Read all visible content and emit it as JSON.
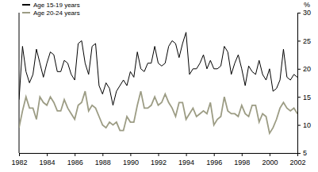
{
  "chart_data": {
    "type": "line",
    "y_label": "%",
    "legend": "top-left",
    "grid": false,
    "xlim": [
      1982,
      2002
    ],
    "xticks": [
      1982,
      1984,
      1986,
      1988,
      1990,
      1992,
      1994,
      1996,
      1998,
      2000,
      2002
    ],
    "ylim": [
      5,
      30
    ],
    "yticks": [
      5,
      10,
      15,
      20,
      25,
      30
    ],
    "x": [
      1982,
      1982.25,
      1982.5,
      1982.75,
      1983,
      1983.25,
      1983.5,
      1983.75,
      1984,
      1984.25,
      1984.5,
      1984.75,
      1985,
      1985.25,
      1985.5,
      1985.75,
      1986,
      1986.25,
      1986.5,
      1986.75,
      1987,
      1987.25,
      1987.5,
      1987.75,
      1988,
      1988.25,
      1988.5,
      1988.75,
      1989,
      1989.25,
      1989.5,
      1989.75,
      1990,
      1990.25,
      1990.5,
      1990.75,
      1991,
      1991.25,
      1991.5,
      1991.75,
      1992,
      1992.25,
      1992.5,
      1992.75,
      1993,
      1993.25,
      1993.5,
      1993.75,
      1994,
      1994.25,
      1994.5,
      1994.75,
      1995,
      1995.25,
      1995.5,
      1995.75,
      1996,
      1996.25,
      1996.5,
      1996.75,
      1997,
      1997.25,
      1997.5,
      1997.75,
      1998,
      1998.25,
      1998.5,
      1998.75,
      1999,
      1999.25,
      1999.5,
      1999.75,
      2000,
      2000.25,
      2000.5,
      2000.75,
      2001,
      2001.25,
      2001.5,
      2001.75,
      2002
    ],
    "series": [
      {
        "name": "Age 15-19 years",
        "color": "#000000",
        "values": [
          14.5,
          24,
          19.5,
          17.5,
          19,
          23.5,
          21,
          18.5,
          21,
          23,
          22.5,
          19.5,
          19.5,
          21.5,
          21,
          19,
          18,
          24.5,
          25,
          21,
          19,
          24,
          24.5,
          17,
          15.5,
          17.5,
          16.5,
          13.5,
          16,
          17,
          18,
          17,
          19.5,
          18.5,
          23,
          20,
          19.5,
          21,
          21,
          24,
          21,
          20.5,
          21,
          24,
          25,
          24.5,
          22,
          24.5,
          26.5,
          19,
          20,
          20,
          21,
          22.5,
          20,
          21.5,
          20,
          20,
          20.5,
          24,
          23,
          19,
          21,
          22.5,
          20,
          17,
          20.5,
          19.5,
          19,
          21.5,
          19,
          18,
          20,
          16,
          16.5,
          18,
          23.5,
          18.5,
          18,
          19,
          18.5
        ]
      },
      {
        "name": "Age 20-24 years",
        "color": "#9c9c84",
        "values": [
          9.5,
          12.5,
          15,
          13,
          13,
          11,
          15,
          14,
          13.5,
          15,
          14,
          12.5,
          12.5,
          14.5,
          13,
          12,
          11,
          13.5,
          14,
          16,
          12.5,
          13.5,
          13,
          11.5,
          10,
          9.5,
          10.5,
          10,
          10.5,
          9,
          9,
          11.5,
          10.5,
          10.5,
          13.5,
          16,
          13,
          13,
          13.5,
          15,
          13.5,
          14,
          15.5,
          14,
          13,
          11.5,
          14,
          14,
          11,
          12,
          13,
          11.5,
          12,
          12.5,
          12,
          14,
          10,
          11,
          11.5,
          15,
          12.5,
          12,
          12,
          11.5,
          13.5,
          12,
          11.5,
          13.5,
          13.5,
          10.5,
          12,
          11.5,
          8.5,
          9.5,
          11,
          13,
          14,
          13,
          12.5,
          13,
          12
        ]
      }
    ]
  }
}
